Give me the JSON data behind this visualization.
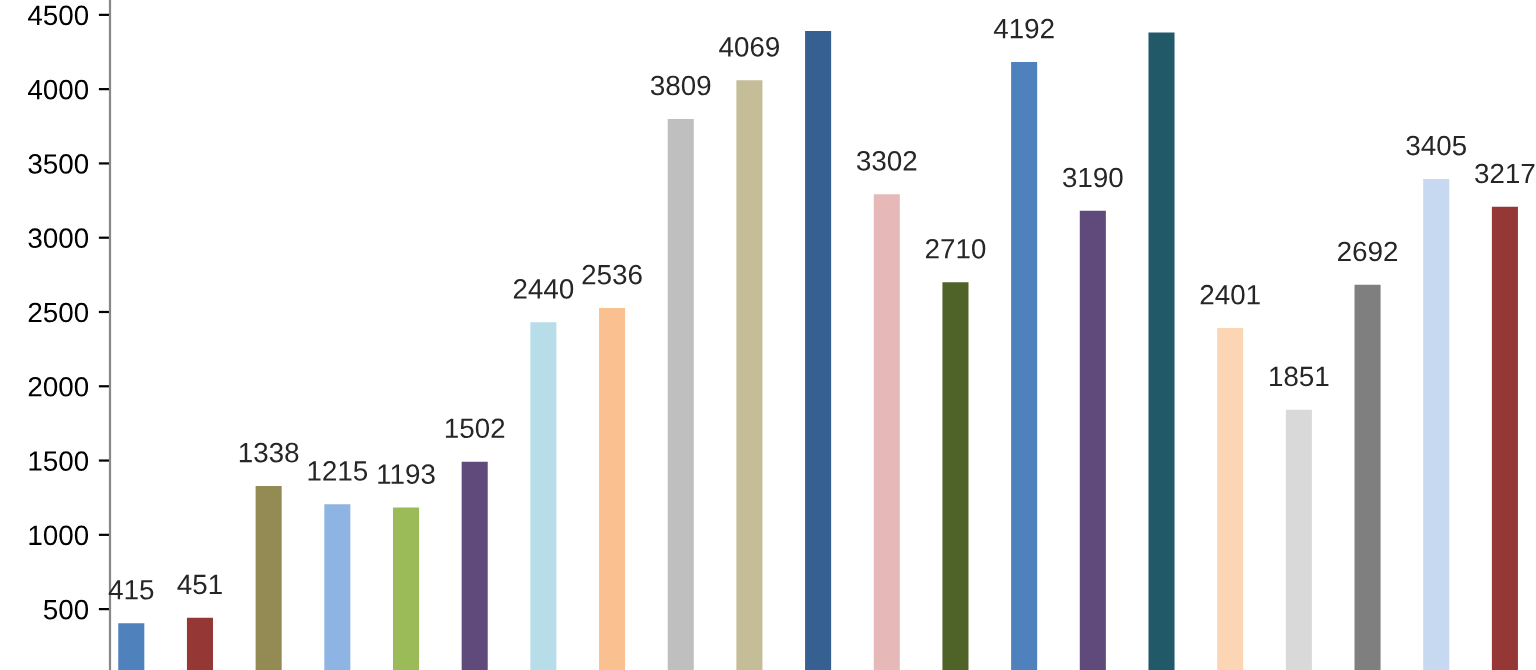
{
  "chart_data": {
    "type": "bar",
    "categories": [
      null,
      null,
      null,
      null,
      null,
      null,
      null,
      null,
      null,
      null,
      null,
      null,
      null,
      null,
      null,
      null,
      null,
      null,
      null,
      null,
      null
    ],
    "values": [
      415,
      451,
      1338,
      1215,
      1193,
      1502,
      2440,
      2536,
      3809,
      4069,
      4400,
      3302,
      2710,
      4192,
      3190,
      4390,
      2401,
      1851,
      2692,
      3405,
      3217
    ],
    "value_labels": [
      "415",
      "451",
      "1338",
      "1215",
      "1193",
      "1502",
      "2440",
      "2536",
      "3809",
      "4069",
      null,
      "3302",
      "2710",
      "4192",
      "3190",
      null,
      "2401",
      "1851",
      "2692",
      "3405",
      "3217"
    ],
    "colors": [
      "#4f81bd",
      "#953735",
      "#948a54",
      "#8eb4e3",
      "#9bbb59",
      "#604a7b",
      "#b7dee8",
      "#fac090",
      "#bfbfbf",
      "#c4bd97",
      "#376092",
      "#e6b9b8",
      "#4f6228",
      "#4f81bd",
      "#604a7b",
      "#215968",
      "#fcd5b5",
      "#d9d9d9",
      "#7f7f7f",
      "#c6d9f1",
      "#953735"
    ],
    "ylim": [
      0,
      4600
    ],
    "yticks": [
      500,
      1000,
      1500,
      2000,
      2500,
      3000,
      3500,
      4000,
      4500
    ],
    "grid": false,
    "legend": false
  }
}
